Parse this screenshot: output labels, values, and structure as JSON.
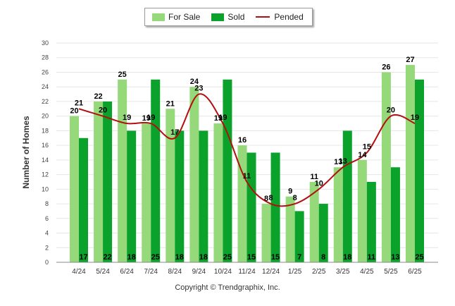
{
  "legend": {
    "for_sale": "For Sale",
    "sold": "Sold",
    "pended": "Pended"
  },
  "copyright": "Copyright © Trendgraphix, Inc.",
  "colors": {
    "for_sale": "#95d97b",
    "sold": "#0aa22a",
    "pended": "#b30f0f"
  },
  "chart_data": {
    "type": "bar",
    "title": "",
    "xlabel": "",
    "ylabel": "Number of Homes",
    "ylim": [
      0,
      30
    ],
    "yticks": [
      0,
      2,
      4,
      6,
      8,
      10,
      12,
      14,
      16,
      18,
      20,
      22,
      24,
      26,
      28,
      30
    ],
    "grid": true,
    "legend_position": "top-center",
    "categories": [
      "4/24",
      "5/24",
      "6/24",
      "7/24",
      "8/24",
      "9/24",
      "10/24",
      "11/24",
      "12/24",
      "1/25",
      "2/25",
      "3/25",
      "4/25",
      "5/25",
      "6/25"
    ],
    "series": [
      {
        "name": "For Sale",
        "type": "bar",
        "values": [
          20,
          22,
          25,
          19,
          21,
          24,
          19,
          16,
          8,
          9,
          11,
          13,
          14,
          26,
          27
        ]
      },
      {
        "name": "Sold",
        "type": "bar",
        "values": [
          17,
          22,
          18,
          25,
          18,
          18,
          25,
          15,
          15,
          7,
          8,
          18,
          11,
          13,
          25
        ]
      },
      {
        "name": "Pended",
        "type": "line",
        "values": [
          21,
          20,
          19,
          19,
          17,
          23,
          19,
          11,
          8,
          8,
          10,
          13,
          15,
          20,
          19
        ]
      }
    ]
  }
}
